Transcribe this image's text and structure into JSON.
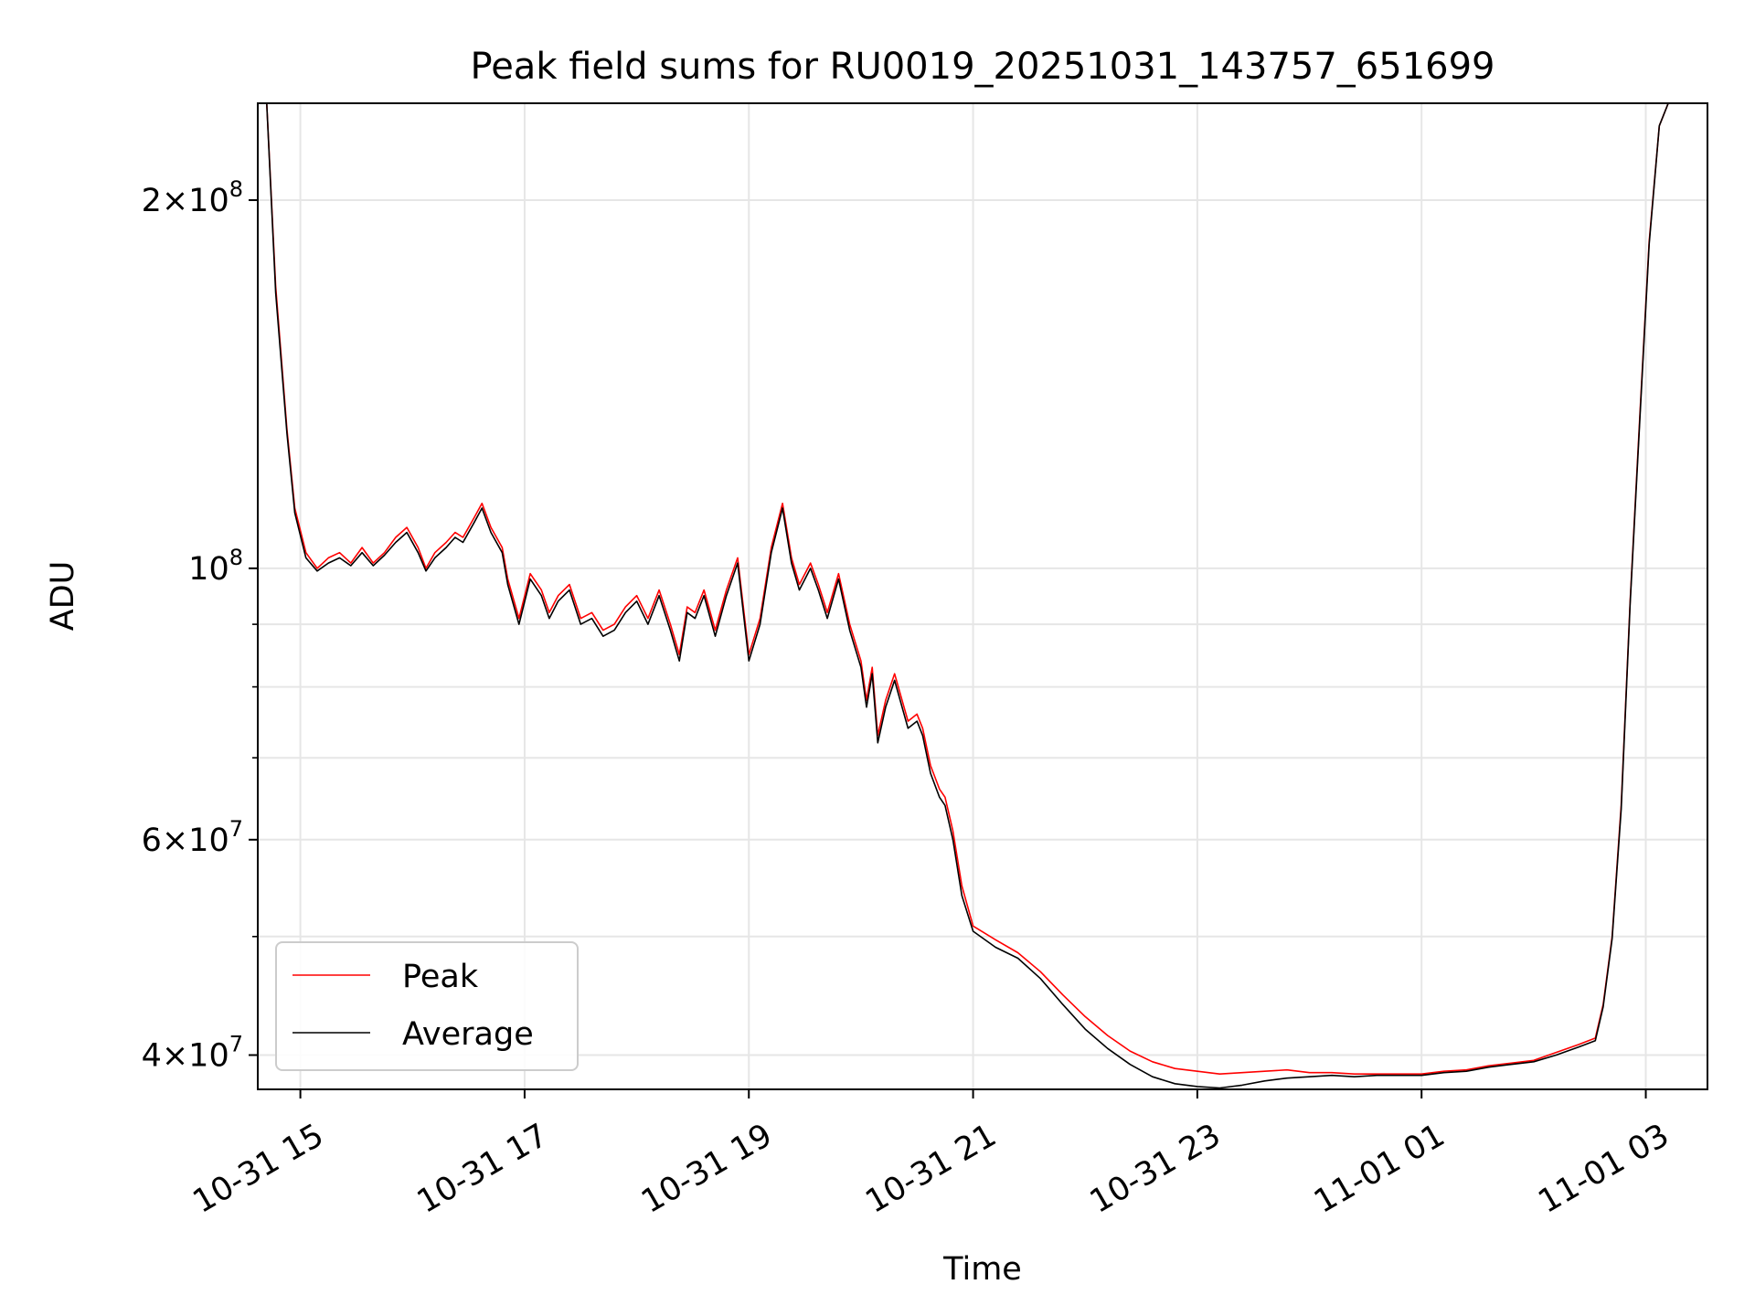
{
  "chart_data": {
    "type": "line",
    "title": "Peak field sums for RU0019_20251031_143757_651699",
    "xlabel": "Time",
    "ylabel": "ADU",
    "yscale": "log",
    "ylim": [
      37500000,
      240000000
    ],
    "xlim_hours": [
      14.62,
      27.55
    ],
    "grid": true,
    "legend_position": "lower-left",
    "x_ticks": [
      {
        "label": "10-31 15",
        "hour": 15
      },
      {
        "label": "10-31 17",
        "hour": 17
      },
      {
        "label": "10-31 19",
        "hour": 19
      },
      {
        "label": "10-31 21",
        "hour": 21
      },
      {
        "label": "10-31 23",
        "hour": 23
      },
      {
        "label": "11-01 01",
        "hour": 25
      },
      {
        "label": "11-01 03",
        "hour": 27
      }
    ],
    "y_major_ticks": [
      {
        "value": 100000000,
        "base": "10",
        "exp": "8"
      },
      {
        "value": 200000000,
        "mant": "2",
        "base": "10",
        "exp": "8"
      },
      {
        "value": 40000000,
        "mant": "4",
        "base": "10",
        "exp": "7"
      },
      {
        "value": 60000000,
        "mant": "6",
        "base": "10",
        "exp": "7"
      }
    ],
    "y_minor_ticks": [
      50000000,
      70000000,
      80000000,
      90000000
    ],
    "series": [
      {
        "name": "Peak",
        "color": "#ff0000",
        "x_hours": [
          14.62,
          14.7,
          14.78,
          14.88,
          14.95,
          15.05,
          15.15,
          15.25,
          15.35,
          15.45,
          15.55,
          15.65,
          15.75,
          15.85,
          15.95,
          16.05,
          16.12,
          16.2,
          16.3,
          16.38,
          16.45,
          16.55,
          16.62,
          16.7,
          16.8,
          16.85,
          16.95,
          17.05,
          17.15,
          17.22,
          17.3,
          17.4,
          17.5,
          17.6,
          17.7,
          17.8,
          17.9,
          18.0,
          18.1,
          18.2,
          18.3,
          18.38,
          18.45,
          18.52,
          18.6,
          18.7,
          18.8,
          18.9,
          19.0,
          19.1,
          19.2,
          19.3,
          19.38,
          19.45,
          19.55,
          19.62,
          19.7,
          19.8,
          19.9,
          20.0,
          20.05,
          20.1,
          20.15,
          20.22,
          20.3,
          20.35,
          20.42,
          20.5,
          20.55,
          20.62,
          20.7,
          20.75,
          20.82,
          20.9,
          21.0,
          21.2,
          21.4,
          21.6,
          21.8,
          22.0,
          22.2,
          22.4,
          22.6,
          22.8,
          23.0,
          23.2,
          23.4,
          23.6,
          23.8,
          24.0,
          24.2,
          24.4,
          24.6,
          24.8,
          25.0,
          25.2,
          25.4,
          25.6,
          25.8,
          26.0,
          26.2,
          26.4,
          26.55,
          26.62,
          26.7,
          26.78,
          26.86,
          26.95,
          27.03,
          27.12,
          27.2,
          27.3,
          27.4,
          27.55
        ],
        "values": [
          240000000,
          240000000,
          170000000,
          130000000,
          112000000,
          103000000,
          100000000,
          102000000,
          103000000,
          101000000,
          104000000,
          101000000,
          103000000,
          106000000,
          108000000,
          104000000,
          100000000,
          103000000,
          105000000,
          107000000,
          106000000,
          110000000,
          113000000,
          108000000,
          104000000,
          98000000,
          91000000,
          99000000,
          96000000,
          92000000,
          95000000,
          97000000,
          91000000,
          92000000,
          89000000,
          90000000,
          93000000,
          95000000,
          91000000,
          96000000,
          90000000,
          85000000,
          93000000,
          92000000,
          96000000,
          89000000,
          96000000,
          102000000,
          85000000,
          91000000,
          104000000,
          113000000,
          102000000,
          97000000,
          101000000,
          97000000,
          92000000,
          99000000,
          90000000,
          84000000,
          78000000,
          83000000,
          73000000,
          78000000,
          82000000,
          79000000,
          75000000,
          76000000,
          74000000,
          69000000,
          66000000,
          65000000,
          61000000,
          55000000,
          51000000,
          49700000,
          48500000,
          46800000,
          44800000,
          43000000,
          41500000,
          40300000,
          39500000,
          39000000,
          38800000,
          38600000,
          38700000,
          38800000,
          38900000,
          38700000,
          38700000,
          38600000,
          38600000,
          38600000,
          38600000,
          38800000,
          38900000,
          39200000,
          39400000,
          39600000,
          40200000,
          40800000,
          41300000,
          44000000,
          50000000,
          64000000,
          94000000,
          135000000,
          185000000,
          230000000,
          240000000,
          240000000,
          240000000,
          240000000
        ]
      },
      {
        "name": "Average",
        "color": "#000000",
        "x_hours": [
          14.62,
          14.7,
          14.78,
          14.88,
          14.95,
          15.05,
          15.15,
          15.25,
          15.35,
          15.45,
          15.55,
          15.65,
          15.75,
          15.85,
          15.95,
          16.05,
          16.12,
          16.2,
          16.3,
          16.38,
          16.45,
          16.55,
          16.62,
          16.7,
          16.8,
          16.85,
          16.95,
          17.05,
          17.15,
          17.22,
          17.3,
          17.4,
          17.5,
          17.6,
          17.7,
          17.8,
          17.9,
          18.0,
          18.1,
          18.2,
          18.3,
          18.38,
          18.45,
          18.52,
          18.6,
          18.7,
          18.8,
          18.9,
          19.0,
          19.1,
          19.2,
          19.3,
          19.38,
          19.45,
          19.55,
          19.62,
          19.7,
          19.8,
          19.9,
          20.0,
          20.05,
          20.1,
          20.15,
          20.22,
          20.3,
          20.35,
          20.42,
          20.5,
          20.55,
          20.62,
          20.7,
          20.75,
          20.82,
          20.9,
          21.0,
          21.2,
          21.4,
          21.6,
          21.8,
          22.0,
          22.2,
          22.4,
          22.6,
          22.8,
          23.0,
          23.2,
          23.4,
          23.6,
          23.8,
          24.0,
          24.2,
          24.4,
          24.6,
          24.8,
          25.0,
          25.2,
          25.4,
          25.6,
          25.8,
          26.0,
          26.2,
          26.4,
          26.55,
          26.62,
          26.7,
          26.78,
          26.86,
          26.95,
          27.03,
          27.12,
          27.2,
          27.3,
          27.4,
          27.55
        ],
        "values": [
          240000000,
          240000000,
          168000000,
          129000000,
          111000000,
          102000000,
          99500000,
          101000000,
          102000000,
          100500000,
          103000000,
          100500000,
          102500000,
          105000000,
          107000000,
          103000000,
          99500000,
          102000000,
          104000000,
          106000000,
          105000000,
          109000000,
          112000000,
          107000000,
          103000000,
          97000000,
          90000000,
          98000000,
          95000000,
          91000000,
          94000000,
          96000000,
          90000000,
          91000000,
          88000000,
          89000000,
          92000000,
          94000000,
          90000000,
          95000000,
          89000000,
          84000000,
          92000000,
          91000000,
          95000000,
          88000000,
          95000000,
          101000000,
          84000000,
          90000000,
          103000000,
          112000000,
          101000000,
          96000000,
          100000000,
          96000000,
          91000000,
          98000000,
          89000000,
          83000000,
          77000000,
          82000000,
          72000000,
          77000000,
          81000000,
          78000000,
          74000000,
          75000000,
          73000000,
          68000000,
          65000000,
          64000000,
          60000000,
          54000000,
          50500000,
          49000000,
          48000000,
          46200000,
          44000000,
          42000000,
          40500000,
          39300000,
          38400000,
          37900000,
          37700000,
          37600000,
          37800000,
          38100000,
          38300000,
          38400000,
          38500000,
          38400000,
          38500000,
          38500000,
          38500000,
          38700000,
          38800000,
          39100000,
          39300000,
          39500000,
          40000000,
          40600000,
          41100000,
          43800000,
          49800000,
          63500000,
          93500000,
          134000000,
          184000000,
          230000000,
          240000000,
          240000000,
          240000000,
          240000000
        ]
      }
    ]
  }
}
